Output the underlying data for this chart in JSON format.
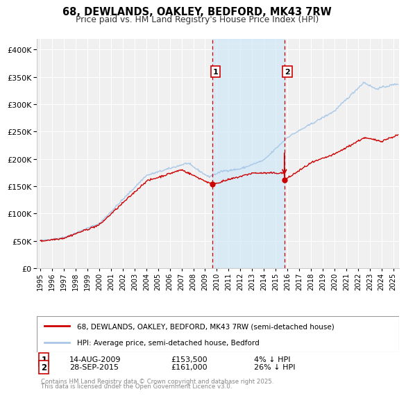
{
  "title": "68, DEWLANDS, OAKLEY, BEDFORD, MK43 7RW",
  "subtitle": "Price paid vs. HM Land Registry's House Price Index (HPI)",
  "background_color": "#ffffff",
  "plot_bg_color": "#f0f0f0",
  "grid_color": "#ffffff",
  "hpi_line_color": "#a8c8e8",
  "price_line_color": "#cc0000",
  "sale1_date_num": 2009.617,
  "sale2_date_num": 2015.747,
  "sale1_price": 153500,
  "sale2_price": 161000,
  "sale1_date_str": "14-AUG-2009",
  "sale2_date_str": "28-SEP-2015",
  "sale1_hpi_diff": "4% ↓ HPI",
  "sale2_hpi_diff": "26% ↓ HPI",
  "legend_property": "68, DEWLANDS, OAKLEY, BEDFORD, MK43 7RW (semi-detached house)",
  "legend_hpi": "HPI: Average price, semi-detached house, Bedford",
  "footnote_line1": "Contains HM Land Registry data © Crown copyright and database right 2025.",
  "footnote_line2": "This data is licensed under the Open Government Licence v3.0.",
  "ylim": [
    0,
    420000
  ],
  "xlim_start": 1994.7,
  "xlim_end": 2025.5,
  "hpi_at_sale2": 218000
}
